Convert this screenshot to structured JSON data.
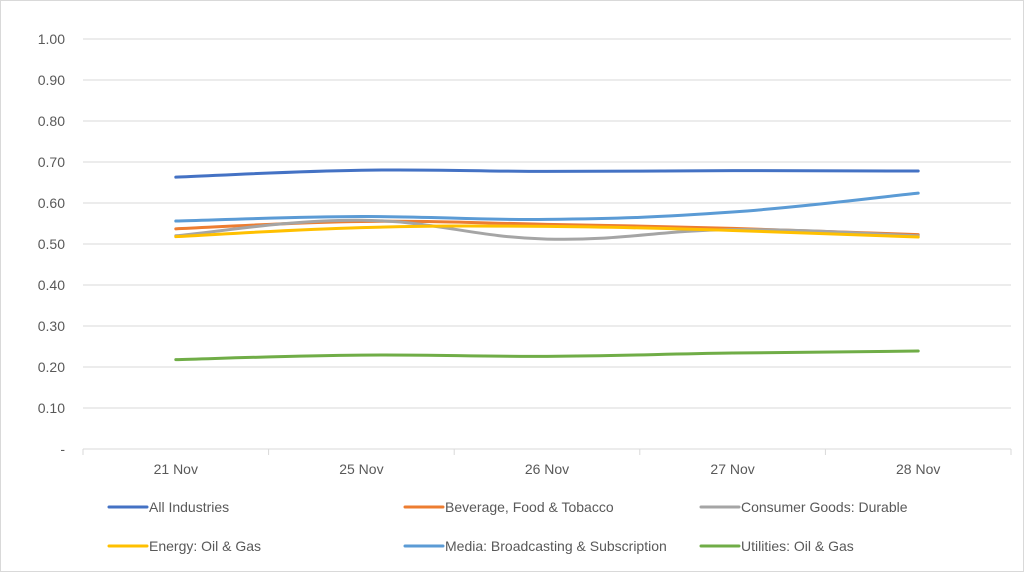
{
  "chart_data": {
    "type": "line",
    "categories": [
      "21 Nov",
      "25 Nov",
      "26 Nov",
      "27 Nov",
      "28 Nov"
    ],
    "ylim": [
      0,
      1
    ],
    "yticks": [
      0,
      0.1,
      0.2,
      0.3,
      0.4,
      0.5,
      0.6,
      0.7,
      0.8,
      0.9,
      1.0
    ],
    "ytick_labels": [
      "-",
      "0.10",
      "0.20",
      "0.30",
      "0.40",
      "0.50",
      "0.60",
      "0.70",
      "0.80",
      "0.90",
      "1.00"
    ],
    "grid": true,
    "legend_position": "bottom",
    "series": [
      {
        "name": "All Industries",
        "color": "#4472c4",
        "values": [
          0.663,
          0.68,
          0.677,
          0.679,
          0.678
        ]
      },
      {
        "name": "Beverage, Food & Tobacco",
        "color": "#ed7d31",
        "values": [
          0.537,
          0.555,
          0.548,
          0.538,
          0.523
        ]
      },
      {
        "name": "Consumer Goods: Durable",
        "color": "#a5a5a5",
        "values": [
          0.52,
          0.558,
          0.512,
          0.535,
          0.52
        ]
      },
      {
        "name": "Energy: Oil & Gas",
        "color": "#ffc000",
        "values": [
          0.518,
          0.54,
          0.543,
          0.533,
          0.517
        ]
      },
      {
        "name": "Media: Broadcasting & Subscription",
        "color": "#5b9bd5",
        "values": [
          0.556,
          0.567,
          0.56,
          0.578,
          0.624
        ]
      },
      {
        "name": "Utilities: Oil & Gas",
        "color": "#70ad47",
        "values": [
          0.218,
          0.229,
          0.226,
          0.234,
          0.239
        ]
      }
    ]
  }
}
